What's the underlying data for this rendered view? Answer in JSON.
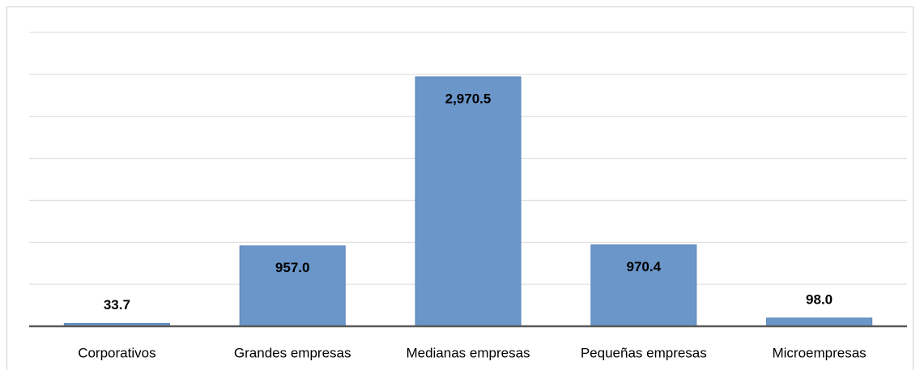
{
  "chart_data": {
    "type": "bar",
    "categories": [
      "Corporativos",
      "Grandes empresas",
      "Medianas empresas",
      "Pequeñas empresas",
      "Microempresas"
    ],
    "values": [
      33.7,
      957.0,
      2970.5,
      970.4,
      98.0
    ],
    "value_labels": [
      "33.7",
      "957.0",
      "2,970.5",
      "970.4",
      "98.0"
    ],
    "color": "#6a96c9",
    "ylim": [
      0,
      3500
    ],
    "yticks": [
      0,
      500,
      1000,
      1500,
      2000,
      2500,
      3000,
      3500
    ],
    "grid": true
  }
}
